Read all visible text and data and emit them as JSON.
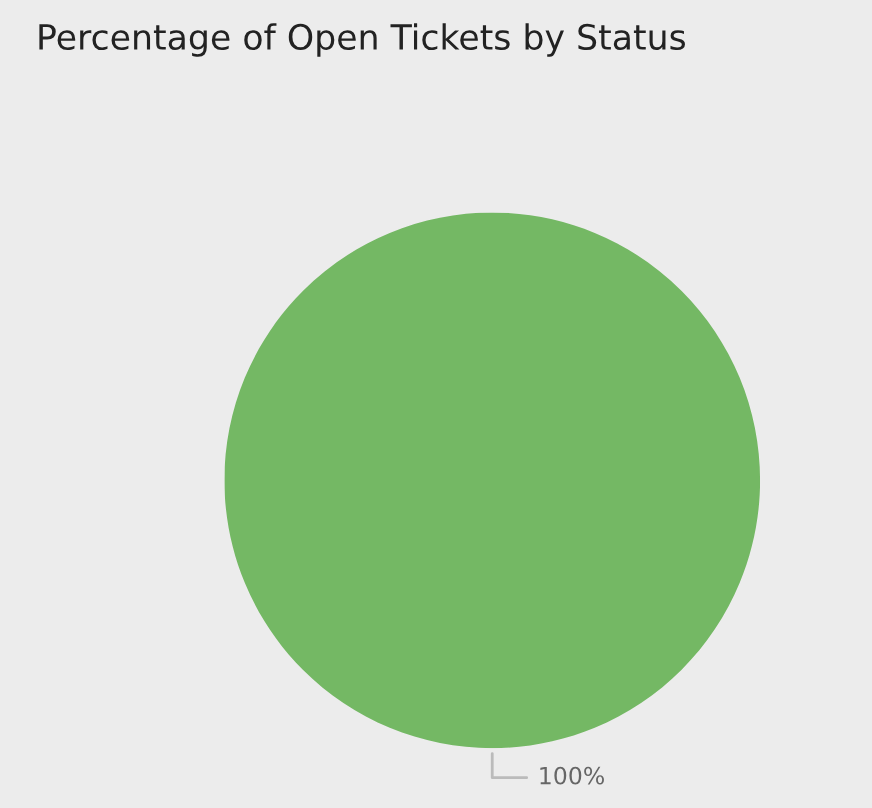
{
  "chart_data": {
    "type": "pie",
    "title": "Percentage of Open Tickets by Status",
    "categories": [
      null
    ],
    "values": [
      100
    ],
    "colors": [
      "#74b864"
    ],
    "value_labels": [
      "100%"
    ],
    "legend": false
  }
}
